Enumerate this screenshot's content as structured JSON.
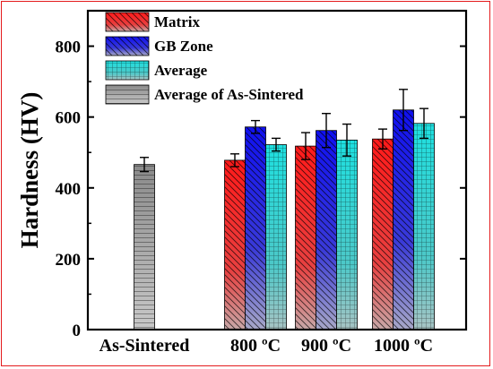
{
  "chart_data": {
    "type": "bar",
    "title": "",
    "xlabel": "",
    "ylabel": "Hardness (HV)",
    "ylim": [
      0,
      900
    ],
    "yticks": [
      0,
      200,
      400,
      600,
      800
    ],
    "categories": [
      "As-Sintered",
      "800 ºC",
      "900 ºC",
      "1000 ºC"
    ],
    "legend_position": "top-left",
    "series": [
      {
        "name": "Matrix",
        "color": "#ff2020",
        "hatch": "diag-back",
        "values": [
          null,
          478,
          518,
          538
        ],
        "errors": [
          null,
          18,
          38,
          28
        ]
      },
      {
        "name": "GB Zone",
        "color": "#1010ee",
        "hatch": "diag-back",
        "values": [
          null,
          572,
          562,
          620
        ],
        "errors": [
          null,
          18,
          48,
          58
        ]
      },
      {
        "name": "Average",
        "color": "#20d8d8",
        "hatch": "grid",
        "values": [
          null,
          522,
          535,
          582
        ],
        "errors": [
          null,
          18,
          45,
          42
        ]
      },
      {
        "name": "Average of As-Sintered",
        "color": "#9a9a9a",
        "hatch": "horizontal",
        "values": [
          466,
          null,
          null,
          null
        ],
        "errors": [
          20,
          null,
          null,
          null
        ]
      }
    ]
  }
}
